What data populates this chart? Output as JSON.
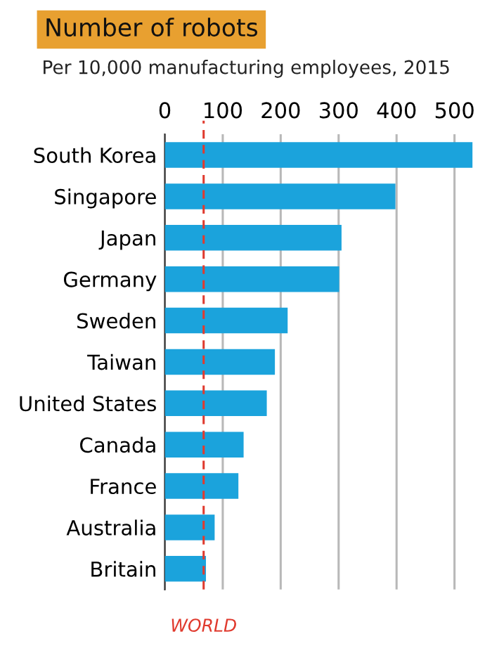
{
  "chart_data": {
    "type": "bar",
    "orientation": "horizontal",
    "title": "Number of robots",
    "subtitle": "Per 10,000 manufacturing employees, 2015",
    "categories": [
      "South Korea",
      "Singapore",
      "Japan",
      "Germany",
      "Sweden",
      "Taiwan",
      "United States",
      "Canada",
      "France",
      "Australia",
      "Britain"
    ],
    "values": [
      531,
      398,
      305,
      301,
      212,
      190,
      176,
      136,
      127,
      86,
      71
    ],
    "color": "#1ba3dc",
    "xlim": [
      0,
      535
    ],
    "xticks": [
      0,
      100,
      200,
      300,
      400,
      500
    ],
    "grid": "x",
    "ref_lines": [
      {
        "axis": "x",
        "value": 67,
        "label": "WORLD",
        "color": "#e03a2e",
        "line_style": "dashed"
      }
    ]
  }
}
